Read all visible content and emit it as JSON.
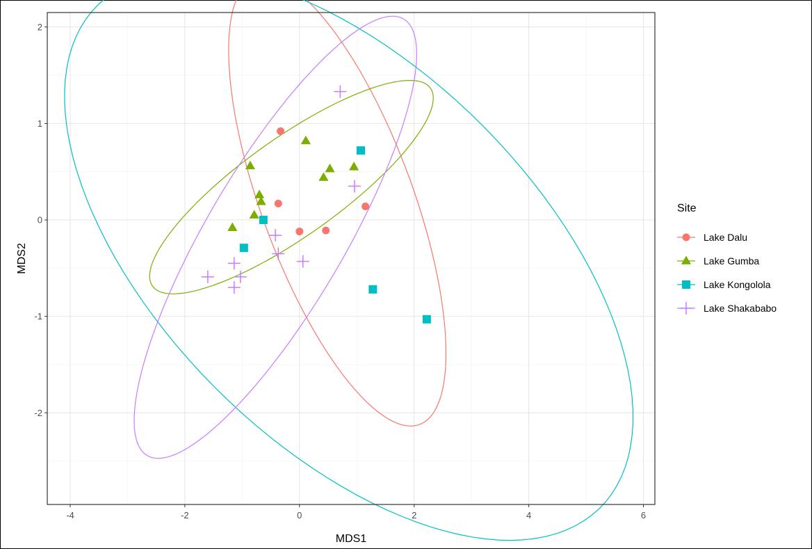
{
  "chart_data": {
    "type": "scatter",
    "title": "",
    "xlabel": "MDS1",
    "ylabel": "MDS2",
    "xlim": [
      -4.4,
      6.2
    ],
    "ylim": [
      -2.95,
      2.15
    ],
    "x_ticks": [
      -4,
      -2,
      0,
      2,
      4,
      6
    ],
    "y_ticks": [
      -2,
      -1,
      0,
      1,
      2
    ],
    "grid": true,
    "legend_position": "right",
    "legend_title": "Site",
    "series": [
      {
        "name": "Lake Dalu",
        "color": "#F8766D",
        "marker": "circle",
        "points": [
          [
            -0.33,
            0.92
          ],
          [
            -0.37,
            0.17
          ],
          [
            0.0,
            -0.12
          ],
          [
            0.46,
            -0.11
          ],
          [
            1.15,
            0.14
          ]
        ],
        "ellipse": {
          "cx": 0.66,
          "cy": 0.19,
          "rx": 2.76,
          "ry": 1.18,
          "angle": -53.5
        }
      },
      {
        "name": "Lake Gumba",
        "color": "#7CAE00",
        "marker": "triangle",
        "points": [
          [
            -0.86,
            0.56
          ],
          [
            0.11,
            0.82
          ],
          [
            0.53,
            0.53
          ],
          [
            0.95,
            0.55
          ],
          [
            0.42,
            0.44
          ],
          [
            -0.7,
            0.26
          ],
          [
            -0.67,
            0.19
          ],
          [
            -0.79,
            0.05
          ],
          [
            -1.17,
            -0.08
          ]
        ],
        "ellipse": {
          "cx": -0.14,
          "cy": 0.34,
          "rx": 2.65,
          "ry": 0.57,
          "angle": 21.5
        }
      },
      {
        "name": "Lake Kongolola",
        "color": "#00BFC4",
        "marker": "square",
        "points": [
          [
            1.07,
            0.72
          ],
          [
            -0.63,
            0.0
          ],
          [
            -0.97,
            -0.29
          ],
          [
            1.28,
            -0.72
          ],
          [
            2.22,
            -1.03
          ]
        ],
        "ellipse": {
          "cx": 0.86,
          "cy": -0.38,
          "rx": 5.3,
          "ry": 2.27,
          "angle": -23
        }
      },
      {
        "name": "Lake Shakababo",
        "color": "#C77CFF",
        "marker": "plus",
        "points": [
          [
            0.71,
            1.33
          ],
          [
            0.96,
            0.35
          ],
          [
            -0.42,
            -0.16
          ],
          [
            -0.37,
            -0.35
          ],
          [
            0.06,
            -0.43
          ],
          [
            -1.14,
            -0.45
          ],
          [
            -1.6,
            -0.59
          ],
          [
            -1.03,
            -0.59
          ],
          [
            -1.14,
            -0.7
          ]
        ],
        "ellipse": {
          "cx": -0.42,
          "cy": -0.18,
          "rx": 3.22,
          "ry": 0.98,
          "angle": 42.5
        }
      }
    ]
  }
}
